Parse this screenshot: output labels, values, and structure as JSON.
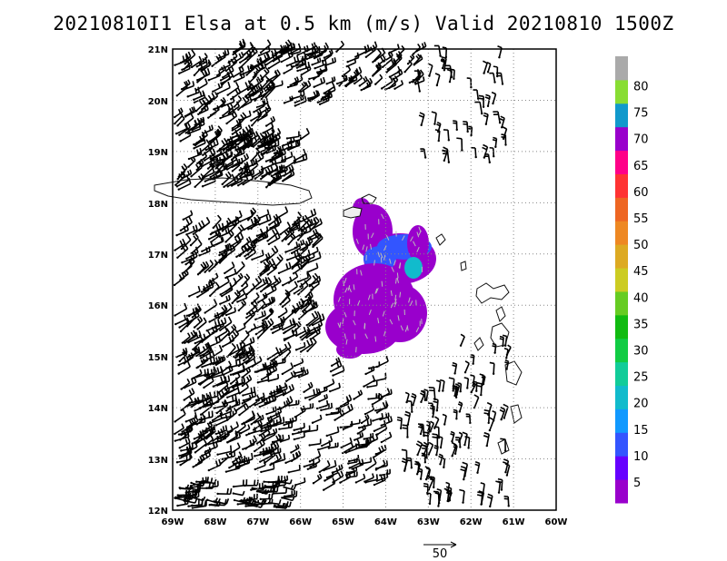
{
  "title": "20210810I1 Elsa at 0.5 km (m/s) Valid 20210810 1500Z",
  "axes": {
    "lon_labels": [
      "69W",
      "68W",
      "67W",
      "66W",
      "65W",
      "64W",
      "63W",
      "62W",
      "61W",
      "60W"
    ],
    "lat_labels": [
      "12N",
      "13N",
      "14N",
      "15N",
      "16N",
      "17N",
      "18N",
      "19N",
      "20N",
      "21N"
    ],
    "lon_range": [
      -69,
      -60
    ],
    "lat_range": [
      12,
      21
    ],
    "grid": true
  },
  "colorbar": {
    "labels": [
      "5",
      "10",
      "15",
      "20",
      "25",
      "30",
      "35",
      "40",
      "45",
      "50",
      "55",
      "60",
      "65",
      "70",
      "75",
      "80"
    ],
    "colors": [
      "#9900cc",
      "#6600ff",
      "#3355ff",
      "#1199ff",
      "#11bbcc",
      "#11cc99",
      "#11cc44",
      "#11bb11",
      "#66cc22",
      "#cccc22",
      "#ddaa22",
      "#ee8822",
      "#ee6622",
      "#ff3333",
      "#ff0088",
      "#9900cc",
      "#1199cc",
      "#88dd33",
      "#aaaaaa"
    ]
  },
  "reference_vector": {
    "label": "50"
  }
}
